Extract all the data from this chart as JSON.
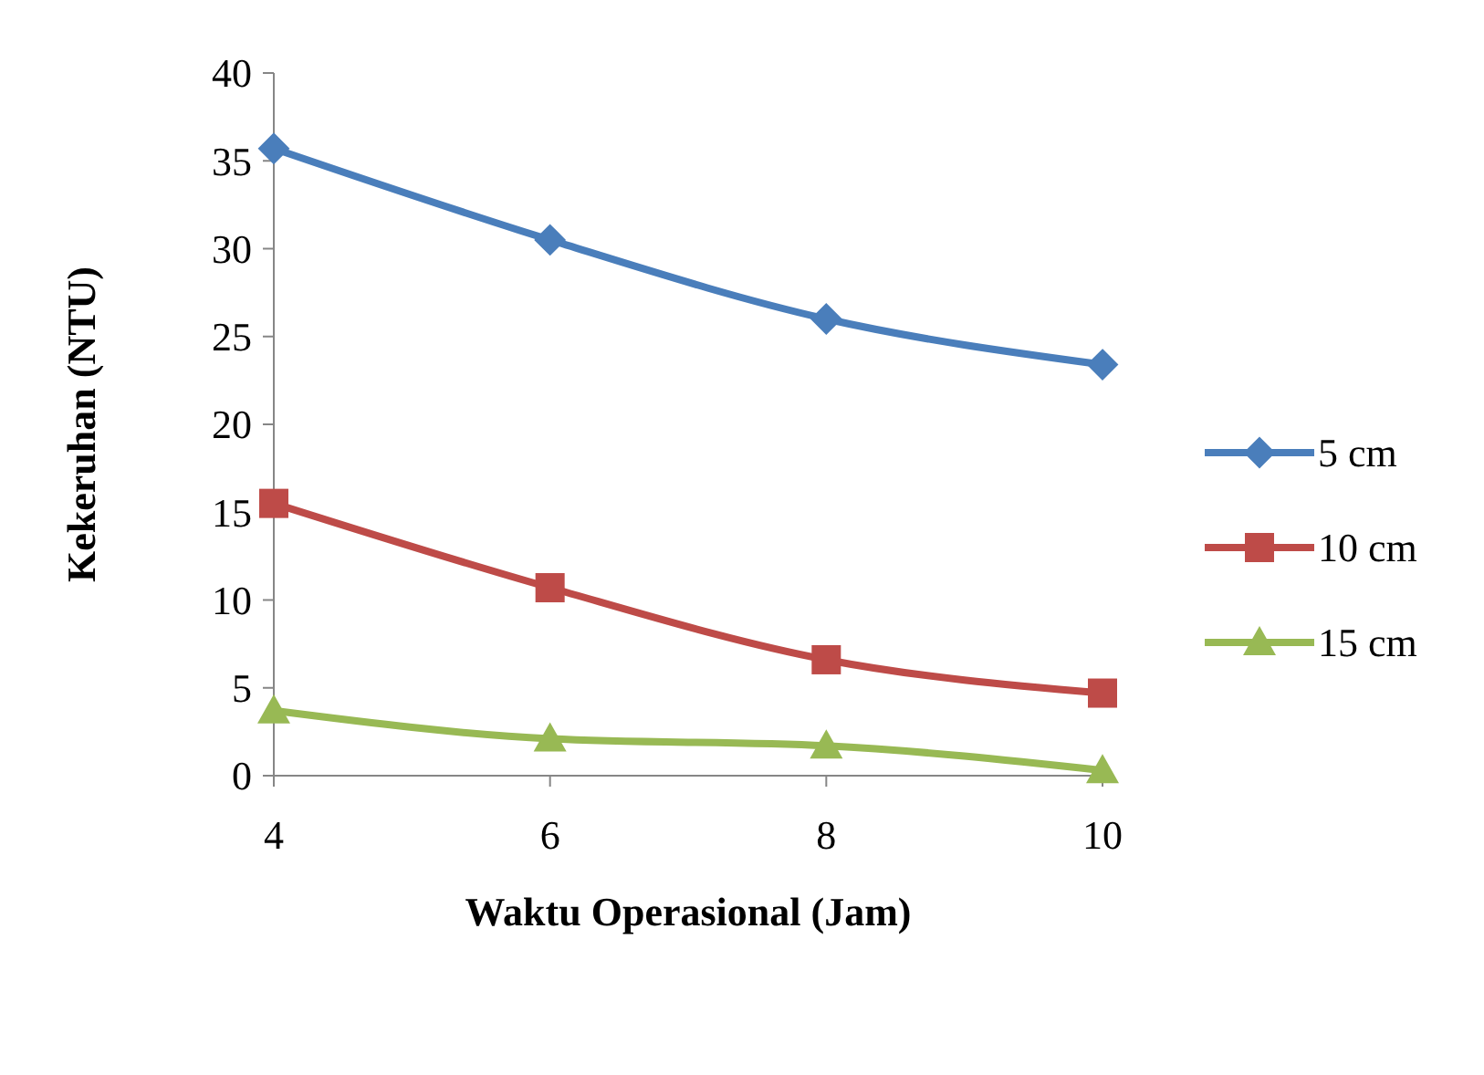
{
  "chart_data": {
    "type": "line",
    "xlabel": "Waktu Operasional (Jam)",
    "ylabel": "Kekeruhan (NTU)",
    "x": [
      4,
      6,
      8,
      10
    ],
    "series": [
      {
        "name": "5 cm",
        "color": "#4a7ebb",
        "marker": "diamond",
        "values": [
          35.7,
          30.5,
          26.0,
          23.4
        ]
      },
      {
        "name": "10 cm",
        "color": "#be4b48",
        "marker": "square",
        "values": [
          15.5,
          10.7,
          6.6,
          4.7
        ]
      },
      {
        "name": "15 cm",
        "color": "#98b954",
        "marker": "triangle",
        "values": [
          3.7,
          2.1,
          1.7,
          0.3
        ]
      }
    ],
    "xlim": [
      4,
      10
    ],
    "xticks": [
      4,
      6,
      8,
      10
    ],
    "ylim": [
      0,
      40
    ],
    "yticks": [
      0,
      5,
      10,
      15,
      20,
      25,
      30,
      35,
      40
    ],
    "grid": false,
    "legend": "right",
    "line_style": "solid"
  }
}
